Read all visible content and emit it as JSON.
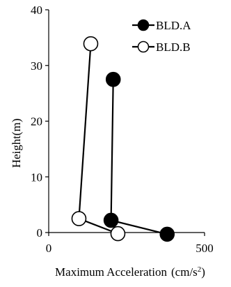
{
  "chart_data": {
    "type": "line",
    "title": "",
    "xlabel": "Maximum Acceleration",
    "xlabel_unit": "(cm/s",
    "xlabel_unit_sup": "2",
    "xlabel_unit_close": ")",
    "ylabel": "Height(m)",
    "xlim": [
      0,
      500
    ],
    "ylim": [
      0,
      40
    ],
    "x_ticks": [
      0,
      500
    ],
    "y_ticks": [
      0,
      10,
      20,
      30,
      40
    ],
    "grid": false,
    "legend_position": "top-right",
    "series": [
      {
        "name": "BLD.A",
        "marker": "filled-circle",
        "color": "#000000",
        "points": [
          {
            "x": 380,
            "y": -0.3
          },
          {
            "x": 200,
            "y": 2.2
          },
          {
            "x": 207,
            "y": 27.5
          }
        ]
      },
      {
        "name": "BLD.B",
        "marker": "open-circle",
        "color": "#000000",
        "points": [
          {
            "x": 222,
            "y": -0.2
          },
          {
            "x": 97,
            "y": 2.5
          },
          {
            "x": 135,
            "y": 33.9
          }
        ]
      }
    ]
  }
}
